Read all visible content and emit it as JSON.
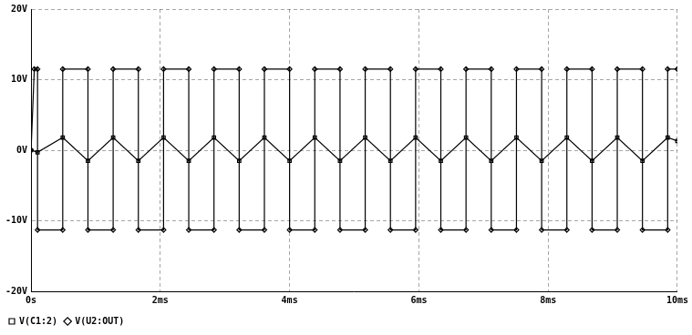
{
  "chart_data": {
    "type": "line",
    "xlim": [
      0,
      10
    ],
    "xticks": [
      {
        "value": 0,
        "label": "0s"
      },
      {
        "value": 2,
        "label": "2ms"
      },
      {
        "value": 4,
        "label": "4ms"
      },
      {
        "value": 6,
        "label": "6ms"
      },
      {
        "value": 8,
        "label": "8ms"
      },
      {
        "value": 10,
        "label": "10ms"
      }
    ],
    "ylim": [
      -20,
      20
    ],
    "yticks": [
      {
        "value": -20,
        "label": "-20V"
      },
      {
        "value": -10,
        "label": "-10V"
      },
      {
        "value": 0,
        "label": "0V"
      },
      {
        "value": 10,
        "label": "10V"
      },
      {
        "value": 20,
        "label": "20V"
      }
    ],
    "grid": true,
    "legend": "bottom-left",
    "series": [
      {
        "name": "V(C1:2)",
        "color": "#000000",
        "marker": "square",
        "line_style": "solid",
        "x": [
          0,
          0.1,
          0.49,
          0.88,
          1.27,
          1.66,
          2.05,
          2.44,
          2.83,
          3.22,
          3.61,
          4.0,
          4.39,
          4.78,
          5.17,
          5.56,
          5.95,
          6.34,
          6.73,
          7.12,
          7.51,
          7.9,
          8.29,
          8.68,
          9.07,
          9.46,
          9.85,
          10
        ],
        "values": [
          0,
          -0.3,
          1.8,
          -1.5,
          1.8,
          -1.5,
          1.8,
          -1.5,
          1.8,
          -1.5,
          1.8,
          -1.5,
          1.8,
          -1.5,
          1.8,
          -1.5,
          1.8,
          -1.5,
          1.8,
          -1.5,
          1.8,
          -1.5,
          1.8,
          -1.5,
          1.8,
          -1.5,
          1.8,
          1.3
        ]
      },
      {
        "name": "V(U2:OUT)",
        "color": "#000000",
        "marker": "diamond",
        "line_style": "solid",
        "x": [
          0,
          0.05,
          0.1,
          0.1,
          0.49,
          0.49,
          0.88,
          0.88,
          1.27,
          1.27,
          1.66,
          1.66,
          2.05,
          2.05,
          2.44,
          2.44,
          2.83,
          2.83,
          3.22,
          3.22,
          3.61,
          3.61,
          4.0,
          4.0,
          4.39,
          4.39,
          4.78,
          4.78,
          5.17,
          5.17,
          5.56,
          5.56,
          5.95,
          5.95,
          6.34,
          6.34,
          6.73,
          6.73,
          7.12,
          7.12,
          7.51,
          7.51,
          7.9,
          7.9,
          8.29,
          8.29,
          8.68,
          8.68,
          9.07,
          9.07,
          9.46,
          9.46,
          9.85,
          9.85,
          10
        ],
        "values": [
          0,
          11.5,
          11.5,
          -11.3,
          -11.3,
          11.5,
          11.5,
          -11.3,
          -11.3,
          11.5,
          11.5,
          -11.3,
          -11.3,
          11.5,
          11.5,
          -11.3,
          -11.3,
          11.5,
          11.5,
          -11.3,
          -11.3,
          11.5,
          11.5,
          -11.3,
          -11.3,
          11.5,
          11.5,
          -11.3,
          -11.3,
          11.5,
          11.5,
          -11.3,
          -11.3,
          11.5,
          11.5,
          -11.3,
          -11.3,
          11.5,
          11.5,
          -11.3,
          -11.3,
          11.5,
          11.5,
          -11.3,
          -11.3,
          11.5,
          11.5,
          -11.3,
          -11.3,
          11.5,
          11.5,
          -11.3,
          -11.3,
          11.5,
          11.5
        ]
      }
    ]
  }
}
